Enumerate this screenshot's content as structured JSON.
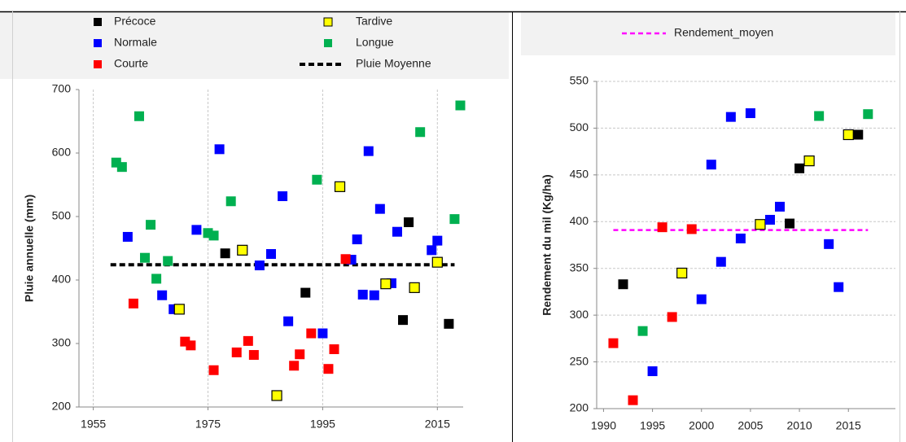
{
  "chart_data": [
    {
      "type": "scatter",
      "series": [
        {
          "name": "Précoce",
          "color": "#000000",
          "x": [
            1978,
            1992,
            2009,
            2010,
            2017
          ],
          "values": [
            442,
            380,
            337,
            491,
            331
          ]
        },
        {
          "name": "Normale",
          "color": "#0000ff",
          "x": [
            1961,
            1967,
            1969,
            1973,
            1977,
            1984,
            1986,
            1988,
            1989,
            1995,
            2000,
            2001,
            2002,
            2003,
            2004,
            2005,
            2007,
            2008,
            2014,
            2015
          ],
          "values": [
            468,
            376,
            354,
            479,
            606,
            423,
            441,
            532,
            335,
            316,
            432,
            464,
            377,
            603,
            376,
            512,
            395,
            476,
            447,
            462
          ]
        },
        {
          "name": "Courte",
          "color": "#ff0000",
          "x": [
            1962,
            1971,
            1972,
            1976,
            1980,
            1982,
            1983,
            1990,
            1991,
            1993,
            1996,
            1997,
            1999
          ],
          "values": [
            363,
            303,
            297,
            258,
            286,
            304,
            282,
            265,
            283,
            316,
            260,
            291,
            433
          ]
        },
        {
          "name": "Tardive",
          "color": "#ffff00",
          "edge": "#000000",
          "x": [
            1970,
            1981,
            1987,
            1998,
            2006,
            2011,
            2015
          ],
          "values": [
            354,
            447,
            218,
            547,
            394,
            388,
            428
          ]
        },
        {
          "name": "Longue",
          "color": "#00b050",
          "x": [
            1959,
            1960,
            1963,
            1964,
            1965,
            1966,
            1968,
            1975,
            1976,
            1979,
            1994,
            2012,
            2018,
            2019
          ],
          "values": [
            585,
            578,
            658,
            435,
            487,
            402,
            430,
            474,
            470,
            524,
            558,
            633,
            496,
            675
          ]
        }
      ],
      "mean_line": {
        "name": "Pluie Moyenne",
        "color": "#000000",
        "x": [
          1958,
          2018
        ],
        "values": [
          424,
          424
        ]
      },
      "xlim": [
        1952.5,
        2019.5
      ],
      "xticks": [
        1955,
        1975,
        1995,
        2015
      ],
      "ylim": [
        200,
        700
      ],
      "yticks": [
        200,
        300,
        400,
        500,
        600,
        700
      ],
      "y_label": "Pluie annuelle (mm)",
      "grid": "x"
    },
    {
      "type": "scatter",
      "points": {
        "x": [
          1991,
          1992,
          1993,
          1994,
          1995,
          1996,
          1997,
          1998,
          1999,
          2000,
          2001,
          2002,
          2003,
          2004,
          2005,
          2006,
          2007,
          2008,
          2009,
          2010,
          2011,
          2012,
          2013,
          2014,
          2015,
          2016,
          2017
        ],
        "values": [
          270,
          333,
          209,
          283,
          240,
          394,
          298,
          345,
          392,
          317,
          461,
          357,
          512,
          382,
          516,
          397,
          402,
          416,
          398,
          457,
          465,
          513,
          376,
          330,
          493,
          493,
          515
        ],
        "colors": [
          "#ff0000",
          "#000000",
          "#ff0000",
          "#00b050",
          "#0000ff",
          "#ff0000",
          "#ff0000",
          "#ffff00",
          "#ff0000",
          "#0000ff",
          "#0000ff",
          "#0000ff",
          "#0000ff",
          "#0000ff",
          "#0000ff",
          "#ffff00",
          "#0000ff",
          "#0000ff",
          "#000000",
          "#000000",
          "#ffff00",
          "#00b050",
          "#0000ff",
          "#0000ff",
          "#ffff00",
          "#000000",
          "#00b050"
        ]
      },
      "mean_line": {
        "name": "Rendement_moyen",
        "color": "#ff00ff",
        "x": [
          1991,
          2017
        ],
        "values": [
          391,
          391
        ]
      },
      "xlim": [
        1989.3,
        2019.8
      ],
      "xticks": [
        1990,
        1995,
        2000,
        2005,
        2010,
        2015
      ],
      "ylim": [
        200,
        550
      ],
      "yticks": [
        200,
        250,
        300,
        350,
        400,
        450,
        500,
        550
      ],
      "y_label": "Rendement du mil (Kg/ha)",
      "grid": "y"
    }
  ]
}
